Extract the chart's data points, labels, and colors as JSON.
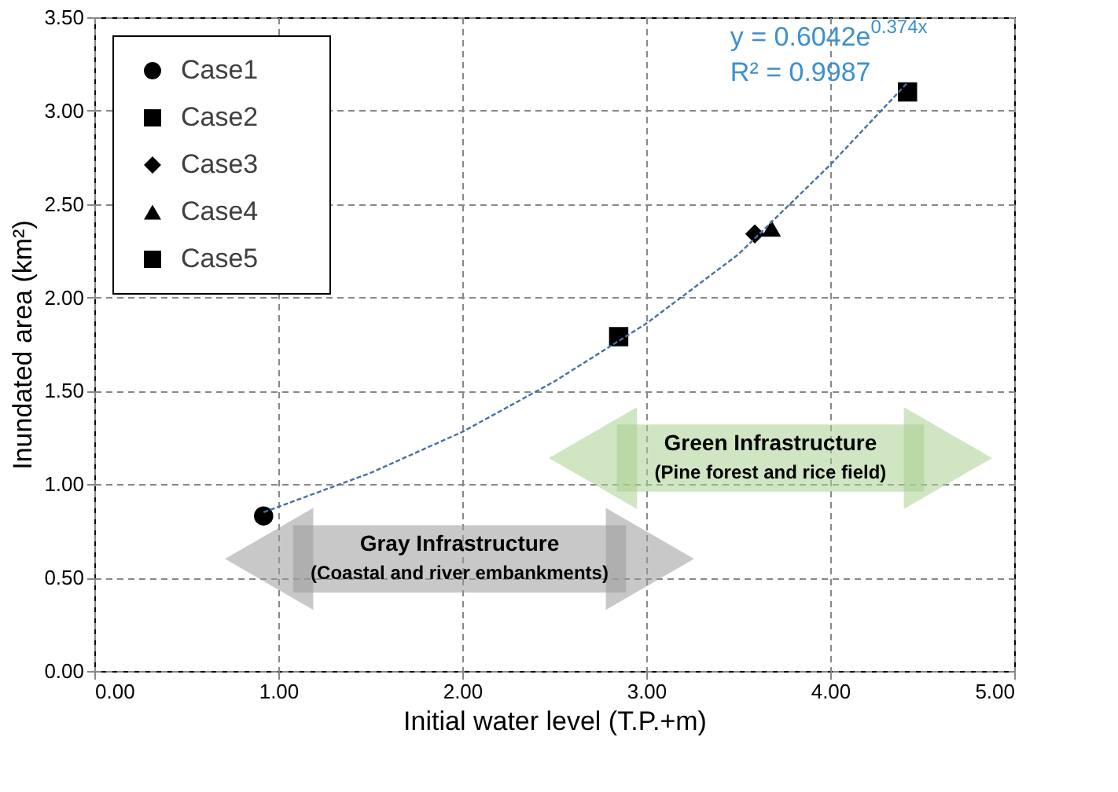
{
  "chart_data": {
    "type": "scatter",
    "xlabel": "Initial water level (T.P.+m)",
    "ylabel": "Inundated area (km²)",
    "xlim": [
      0,
      5
    ],
    "ylim": [
      0,
      3.5
    ],
    "xticks": [
      {
        "value": 0,
        "label": "0.00"
      },
      {
        "value": 1,
        "label": "1.00"
      },
      {
        "value": 2,
        "label": "2.00"
      },
      {
        "value": 3,
        "label": "3.00"
      },
      {
        "value": 4,
        "label": "4.00"
      },
      {
        "value": 5,
        "label": "5.00"
      }
    ],
    "yticks": [
      {
        "value": 0,
        "label": "0.00"
      },
      {
        "value": 0.5,
        "label": "0.50"
      },
      {
        "value": 1,
        "label": "1.00"
      },
      {
        "value": 1.5,
        "label": "1.50"
      },
      {
        "value": 2,
        "label": "2.00"
      },
      {
        "value": 2.5,
        "label": "2.50"
      },
      {
        "value": 3,
        "label": "3.00"
      },
      {
        "value": 3.5,
        "label": "3.50"
      }
    ],
    "grid": true,
    "legend": "top left",
    "series": [
      {
        "name": "Case1",
        "color": "#000000",
        "marker": "circle",
        "x": [
          0.92
        ],
        "values": [
          0.83
        ]
      },
      {
        "name": "Case2",
        "color": "#000000",
        "marker": "square",
        "x": [
          2.85
        ],
        "values": [
          1.79
        ]
      },
      {
        "name": "Case3",
        "color": "#000000",
        "marker": "diamond",
        "x": [
          3.59
        ],
        "values": [
          2.34
        ]
      },
      {
        "name": "Case4",
        "color": "#000000",
        "marker": "triangle",
        "x": [
          3.68
        ],
        "values": [
          2.37
        ]
      },
      {
        "name": "Case5",
        "color": "#000000",
        "marker": "cross",
        "x": [
          4.42
        ],
        "values": [
          3.1
        ]
      },
      {
        "type": "line",
        "color": "#4a6fa5",
        "line_style": "dashed",
        "marker": "none",
        "x": [
          0.92,
          1.5,
          2.0,
          2.5,
          3.0,
          3.5,
          4.0,
          4.42
        ],
        "values": [
          0.85,
          1.06,
          1.28,
          1.55,
          1.86,
          2.23,
          2.71,
          3.15
        ]
      }
    ],
    "annotations": [
      "y = 0.6042e$^{0.374x}$",
      "R² = 0.9987",
      "Gray Infrastructure",
      "(Coastal and river embankments)",
      "Green Infrastructure",
      "(Pine forest and rice field)"
    ]
  }
}
